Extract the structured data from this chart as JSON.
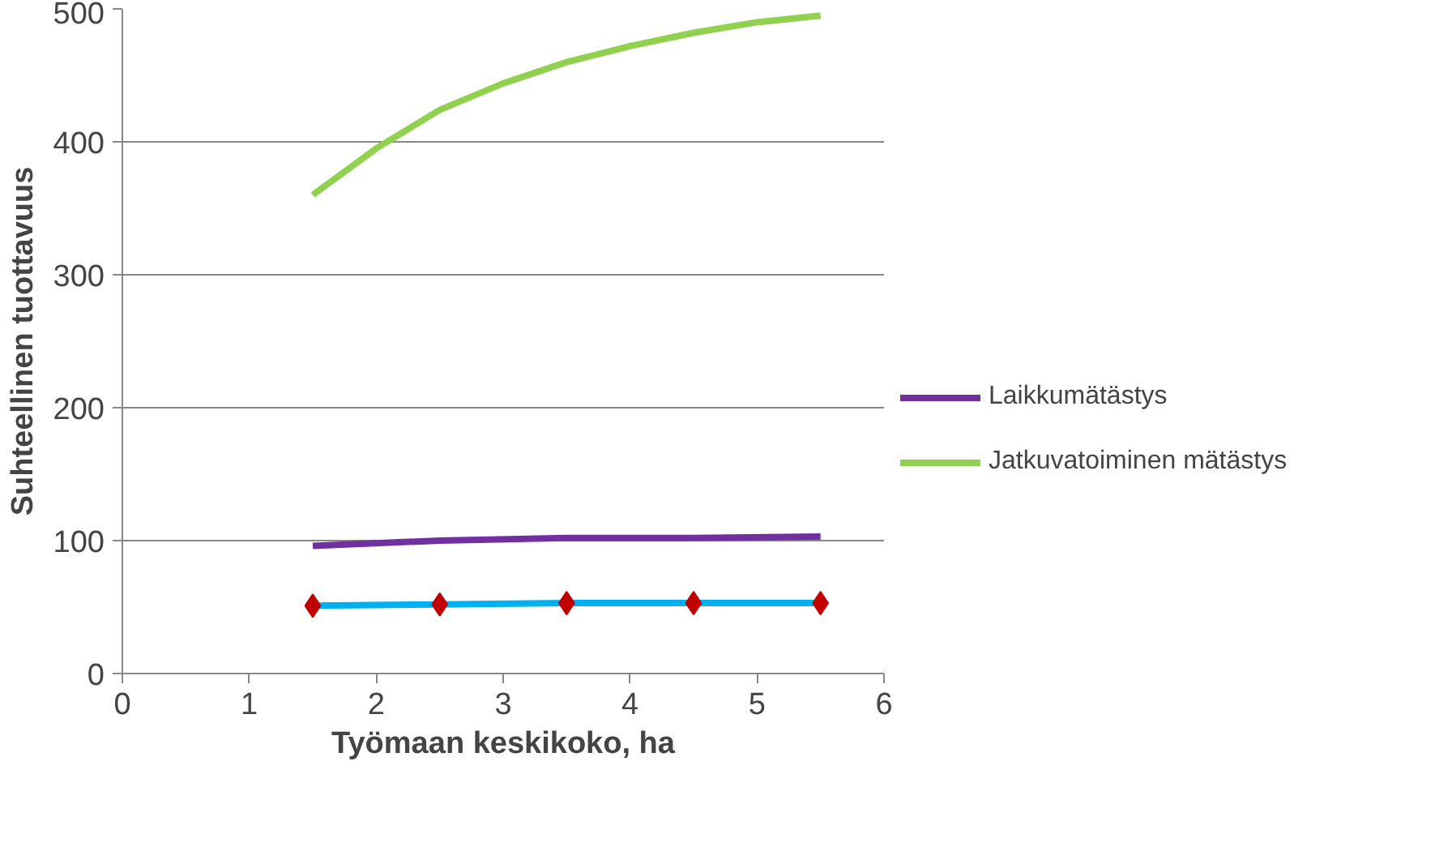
{
  "chart_data": {
    "type": "line",
    "xlabel": "Työmaan keskikoko, ha",
    "ylabel": "Suhteellinen tuottavuus",
    "xlim": [
      0,
      6
    ],
    "xticks": [
      0,
      1,
      2,
      3,
      4,
      5,
      6
    ],
    "ylim": [
      0,
      500
    ],
    "yticks": [
      0,
      100,
      200,
      300,
      400,
      500
    ],
    "grid": "y",
    "legend": "right",
    "line_style": "solid",
    "series": [
      {
        "type": "scatter",
        "marker": "diamond",
        "color": "#c00000",
        "x": [
          1.5,
          2.5,
          3.5,
          4.5,
          5.5
        ],
        "values": [
          51,
          52,
          53,
          53,
          53
        ]
      },
      {
        "color": "#00b0f0",
        "x": [
          1.5,
          2.5,
          3.5,
          4.5,
          5.5
        ],
        "values": [
          51,
          52,
          53,
          53,
          53
        ]
      },
      {
        "name": "Laikkumätästys",
        "color": "#7030a0",
        "x": [
          1.5,
          2.5,
          3.5,
          4.5,
          5.5
        ],
        "values": [
          96,
          100,
          102,
          102,
          103
        ]
      },
      {
        "name": "Jatkuvatoiminen mätästys",
        "color": "#92d050",
        "x": [
          1.5,
          2,
          2.5,
          3,
          3.5,
          4,
          4.5,
          5,
          5.5
        ],
        "values": [
          360,
          395,
          424,
          444,
          460,
          472,
          482,
          490,
          495
        ]
      }
    ]
  }
}
